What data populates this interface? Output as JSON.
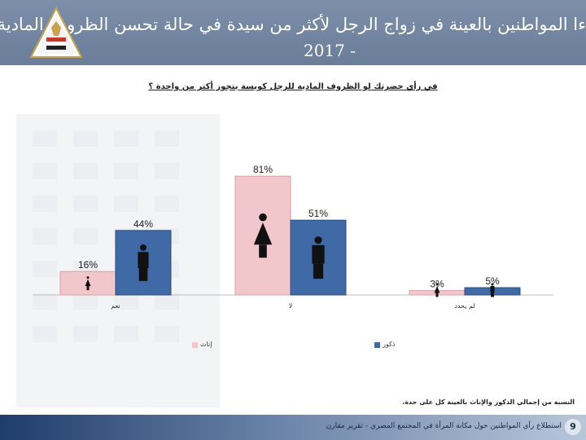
{
  "header": {
    "title_line1": "ءا المواطنين بالعينة في زواج الرجل لأكثر من سيدة في حالة تحسن الظروف المادية له",
    "title_line2": "2017 -"
  },
  "question": "في رأي حضرتك لو الظروف المادية للرجل كويسة يتجوز أكتر من واحدة ؟",
  "colors": {
    "female": "#f2c7cc",
    "male": "#3f6aa6",
    "header": "#7087a3"
  },
  "chart_data": {
    "type": "bar",
    "categories": [
      "نعم",
      "لا",
      "لم يحدد"
    ],
    "series": [
      {
        "name": "إناث",
        "values": [
          16,
          81,
          3
        ]
      },
      {
        "name": "ذكور",
        "values": [
          44,
          51,
          5
        ]
      }
    ],
    "data_labels": [
      [
        "16%",
        "81%",
        "3%"
      ],
      [
        "44%",
        "51%",
        "5%"
      ]
    ],
    "ylim": [
      0,
      100
    ],
    "grid": false,
    "legend_position": "bottom"
  },
  "icons": {
    "female": "female-figure-icon",
    "male": "male-figure-icon"
  },
  "footnote": "النسبة من إجمالي الذكور والإناث بالعينة كل على حدة.",
  "footer": {
    "text": "استطلاع رأي المواطنين حول مكانة المرأة في المجتمع المصري - تقرير مقارن",
    "page_number": "9"
  }
}
